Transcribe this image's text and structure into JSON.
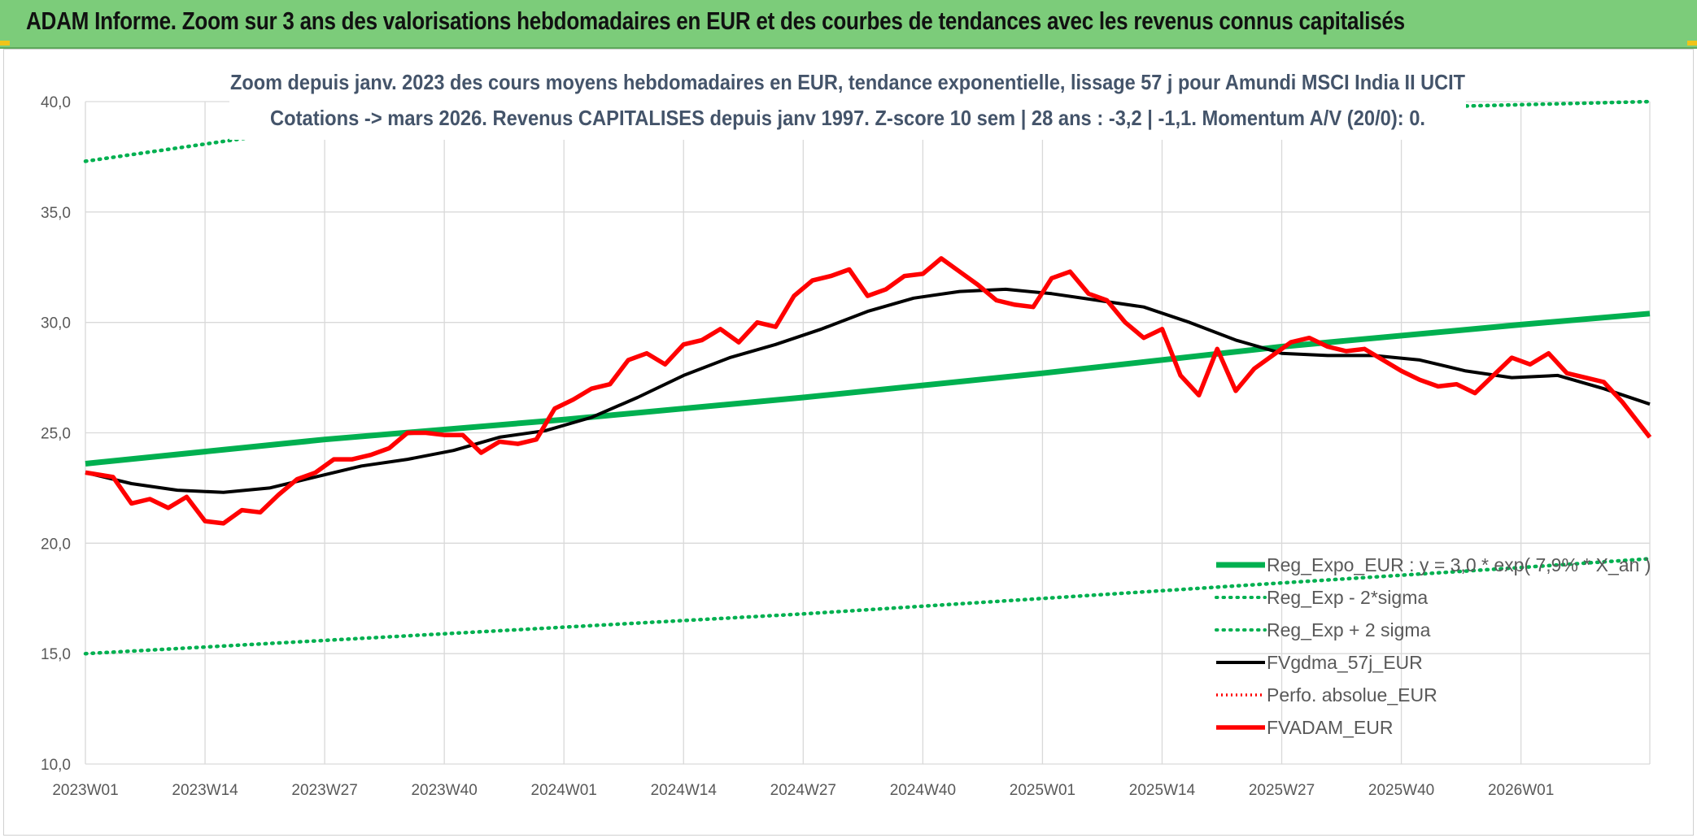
{
  "header": {
    "title": "ADAM Informe. Zoom sur 3 ans des valorisations hebdomadaires en EUR et des courbes de tendances avec les revenus connus capitalisés"
  },
  "chart_data": {
    "type": "line",
    "subtitle_line1": "Zoom depuis janv. 2023 des cours moyens hebdomadaires en EUR, tendance exponentielle, lissage 57 j pour Amundi MSCI India II UCIT",
    "subtitle_line2": "Cotations -> mars 2026. Revenus CAPITALISES depuis janv 1997. Z-score 10 sem | 28 ans : -3,2 | -1,1. Momentum A/V (20/0): 0.",
    "x_tick_labels": [
      "2023W01",
      "2023W14",
      "2023W27",
      "2023W40",
      "2024W01",
      "2024W14",
      "2024W27",
      "2024W40",
      "2025W01",
      "2025W14",
      "2025W27",
      "2025W40",
      "2026W01"
    ],
    "x_tick_index": [
      0,
      13,
      26,
      39,
      52,
      65,
      78,
      91,
      104,
      117,
      130,
      143,
      156
    ],
    "y_tick_labels": [
      "10,0",
      "15,0",
      "20,0",
      "25,0",
      "30,0",
      "35,0",
      "40,0"
    ],
    "ylim": [
      10,
      40
    ],
    "xlim": [
      0,
      170
    ],
    "grid": true,
    "legend_position": "bottom-right",
    "colors": {
      "trend": "#00b050",
      "band": "#00b050",
      "smooth": "#000000",
      "perf": "#ff0000",
      "price": "#ff0000"
    },
    "series": [
      {
        "name": "Reg_Expo_EUR : y = 3,0 * exp( 7,9% * X_an )",
        "key": "trend",
        "x": [
          0,
          26,
          52,
          78,
          104,
          130,
          156,
          170
        ],
        "values": [
          23.6,
          24.7,
          25.6,
          26.6,
          27.7,
          28.9,
          29.9,
          30.4
        ]
      },
      {
        "name": "Reg_Exp - 2*sigma",
        "key": "lower",
        "x": [
          0,
          26,
          52,
          78,
          104,
          130,
          156,
          170
        ],
        "values": [
          15.0,
          15.6,
          16.2,
          16.8,
          17.5,
          18.2,
          18.9,
          19.3
        ]
      },
      {
        "name": "Reg_Exp + 2 sigma",
        "key": "upper",
        "x": [
          0,
          20,
          170
        ],
        "values": [
          37.3,
          38.5,
          40.0
        ]
      },
      {
        "name": "FVgdma_57j_EUR",
        "key": "smooth",
        "x": [
          0,
          5,
          10,
          15,
          20,
          25,
          30,
          35,
          40,
          45,
          50,
          55,
          60,
          65,
          70,
          75,
          80,
          85,
          90,
          95,
          100,
          105,
          110,
          115,
          120,
          125,
          130,
          135,
          140,
          145,
          150,
          155,
          160,
          165,
          170
        ],
        "values": [
          23.2,
          22.7,
          22.4,
          22.3,
          22.5,
          23.0,
          23.5,
          23.8,
          24.2,
          24.8,
          25.1,
          25.7,
          26.6,
          27.6,
          28.4,
          29.0,
          29.7,
          30.5,
          31.1,
          31.4,
          31.5,
          31.3,
          31.0,
          30.7,
          30.0,
          29.2,
          28.6,
          28.5,
          28.5,
          28.3,
          27.8,
          27.5,
          27.6,
          27.0,
          26.3
        ]
      },
      {
        "name": "Perfo. absolue_EUR",
        "key": "perf",
        "x": [],
        "values": []
      },
      {
        "name": "FVADAM_EUR",
        "key": "price",
        "x": [
          0,
          3,
          5,
          7,
          9,
          11,
          13,
          15,
          17,
          19,
          21,
          23,
          25,
          27,
          29,
          31,
          33,
          35,
          37,
          39,
          41,
          43,
          45,
          47,
          49,
          51,
          53,
          55,
          57,
          59,
          61,
          63,
          65,
          67,
          69,
          71,
          73,
          75,
          77,
          79,
          81,
          83,
          85,
          87,
          89,
          91,
          93,
          95,
          97,
          99,
          101,
          103,
          105,
          107,
          109,
          111,
          113,
          115,
          117,
          119,
          121,
          123,
          125,
          127,
          129,
          131,
          133,
          135,
          137,
          139,
          141,
          143,
          145,
          147,
          149,
          151,
          153,
          155,
          157,
          159,
          161,
          163,
          165,
          167,
          170
        ],
        "values": [
          23.2,
          23.0,
          21.8,
          22.0,
          21.6,
          22.1,
          21.0,
          20.9,
          21.5,
          21.4,
          22.2,
          22.9,
          23.2,
          23.8,
          23.8,
          24.0,
          24.3,
          25.0,
          25.0,
          24.9,
          24.9,
          24.1,
          24.6,
          24.5,
          24.7,
          26.1,
          26.5,
          27.0,
          27.2,
          28.3,
          28.6,
          28.1,
          29.0,
          29.2,
          29.7,
          29.1,
          30.0,
          29.8,
          31.2,
          31.9,
          32.1,
          32.4,
          31.2,
          31.5,
          32.1,
          32.2,
          32.9,
          32.3,
          31.7,
          31.0,
          30.8,
          30.7,
          32.0,
          32.3,
          31.3,
          31.0,
          30.0,
          29.3,
          29.7,
          27.6,
          26.7,
          28.8,
          26.9,
          27.9,
          28.5,
          29.1,
          29.3,
          28.9,
          28.7,
          28.8,
          28.3,
          27.8,
          27.4,
          27.1,
          27.2,
          26.8,
          27.6,
          28.4,
          28.1,
          28.6,
          27.7,
          27.5,
          27.3,
          26.4,
          24.8
        ]
      }
    ]
  }
}
